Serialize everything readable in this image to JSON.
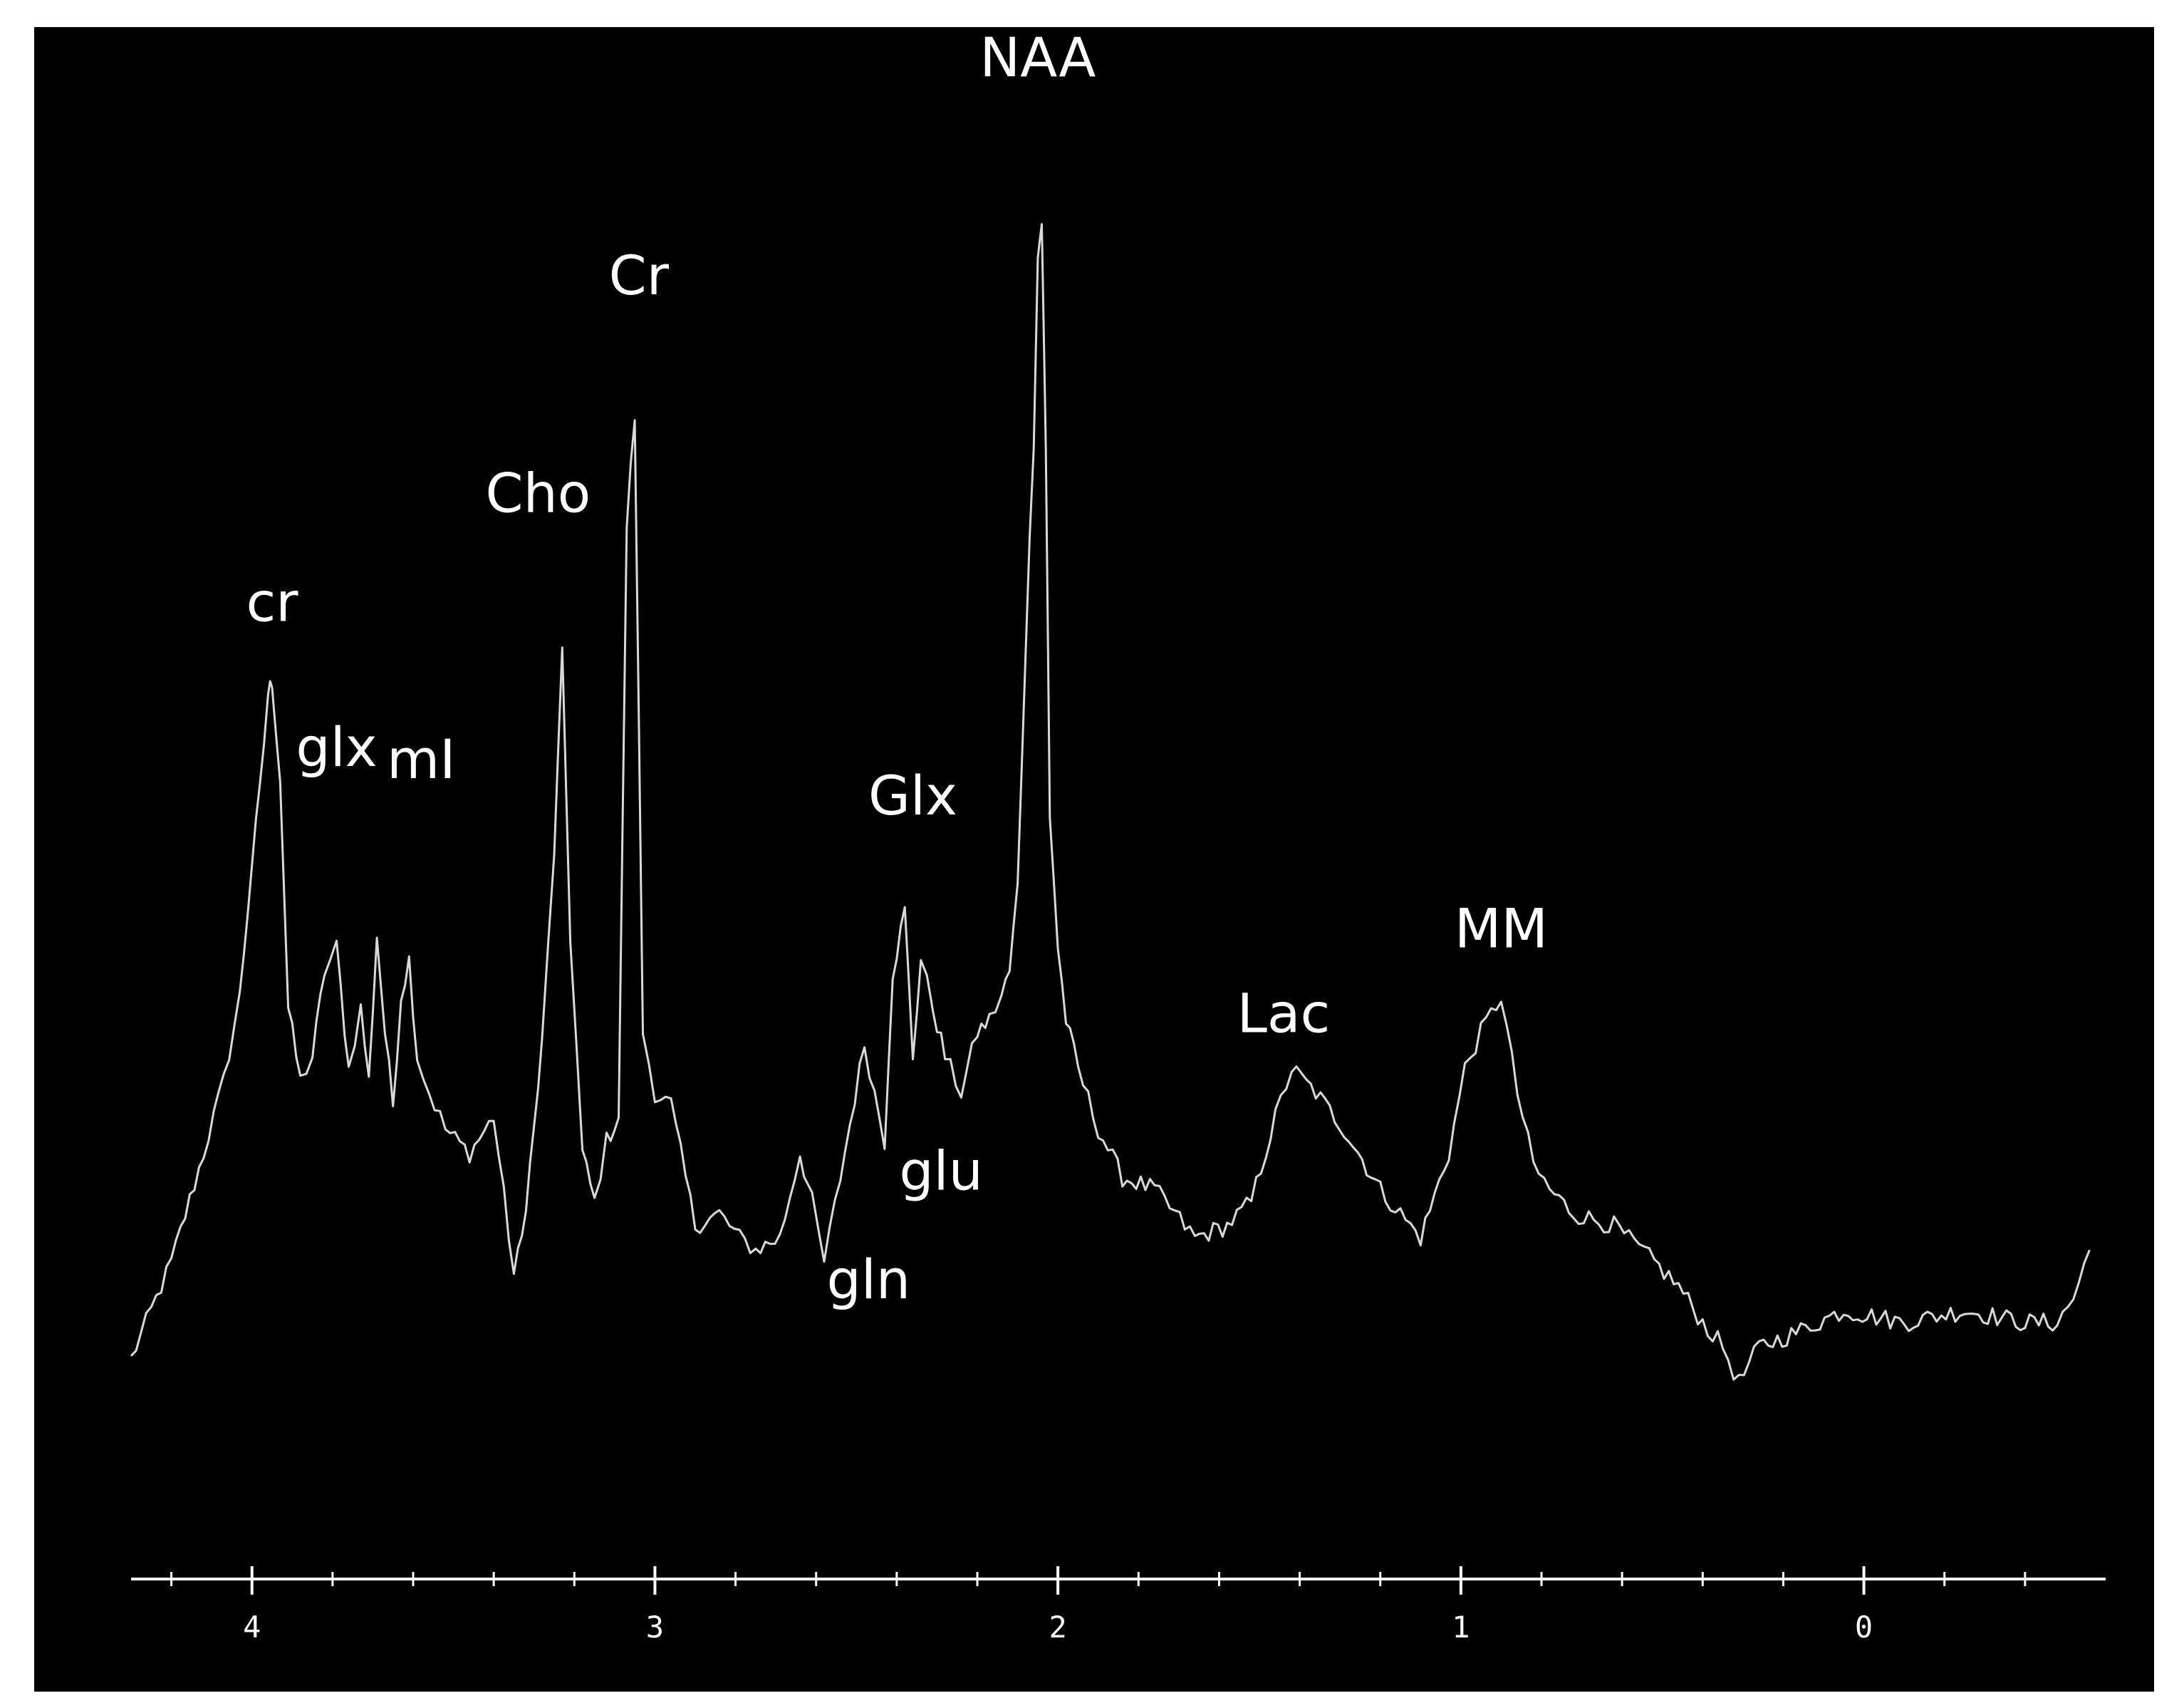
{
  "chart_data": {
    "type": "line",
    "title": "",
    "xlabel": "",
    "ylabel": "",
    "x_reversed": true,
    "xlim": [
      4.3,
      -0.6
    ],
    "ylim": [
      0,
      100
    ],
    "grid": false,
    "colors": {
      "background": "#000000",
      "line": "#d9d9d9",
      "text": "#ffffff"
    },
    "x_ticks": [
      {
        "value": 4,
        "label": "4"
      },
      {
        "value": 3,
        "label": "3"
      },
      {
        "value": 2,
        "label": "2"
      },
      {
        "value": 1,
        "label": "1"
      },
      {
        "value": 0,
        "label": "0"
      }
    ],
    "minor_tick_step": 0.2,
    "series": [
      {
        "x": [
          4.3,
          4.2,
          4.12,
          4.07,
          4.03,
          4.0,
          3.98,
          3.96,
          3.95,
          3.93,
          3.91,
          3.88,
          3.85,
          3.82,
          3.79,
          3.76,
          3.73,
          3.71,
          3.69,
          3.67,
          3.65,
          3.63,
          3.61,
          3.59,
          3.56,
          3.52,
          3.46,
          3.4,
          3.35,
          3.33,
          3.3,
          3.28,
          3.25,
          3.23,
          3.21,
          3.18,
          3.15,
          3.12,
          3.09,
          3.07,
          3.05,
          3.03,
          3.0,
          2.96,
          2.9,
          2.84,
          2.79,
          2.75,
          2.69,
          2.64,
          2.61,
          2.58,
          2.54,
          2.48,
          2.43,
          2.41,
          2.38,
          2.36,
          2.34,
          2.31,
          2.28,
          2.24,
          2.2,
          2.17,
          2.14,
          2.12,
          2.1,
          2.08,
          2.06,
          2.05,
          2.04,
          2.03,
          2.02,
          2.0,
          1.98,
          1.95,
          1.9,
          1.84,
          1.76,
          1.66,
          1.58,
          1.52,
          1.46,
          1.42,
          1.36,
          1.29,
          1.2,
          1.1,
          1.03,
          0.99,
          0.95,
          0.9,
          0.86,
          0.82,
          0.78,
          0.72,
          0.62,
          0.52,
          0.46,
          0.4,
          0.35,
          0.31,
          0.26,
          0.18,
          0.05,
          -0.1,
          -0.25,
          -0.4,
          -0.48,
          -0.52,
          -0.56
        ],
        "y": [
          3,
          11,
          20,
          26,
          33,
          44,
          50,
          58,
          59,
          51,
          32,
          26,
          28,
          35,
          37,
          27,
          32,
          26,
          38,
          30,
          24,
          33,
          36,
          28,
          25,
          22,
          20,
          23,
          10,
          13,
          22,
          29,
          45,
          61,
          38,
          20,
          16,
          21,
          23,
          72,
          81,
          30,
          25,
          24,
          14,
          15,
          13,
          12,
          13,
          20,
          16,
          11,
          18,
          29,
          21,
          35,
          40,
          28,
          36,
          32,
          28,
          25,
          30,
          31,
          33,
          35,
          42,
          62,
          79,
          94,
          97,
          78,
          48,
          37,
          31,
          27,
          22,
          18,
          17,
          13,
          14,
          16,
          23,
          27,
          25,
          22,
          17,
          13,
          20,
          27,
          30,
          33,
          25,
          19,
          17,
          15,
          14,
          11,
          9,
          6,
          4,
          1,
          4,
          5,
          7,
          6,
          7,
          6,
          6,
          8,
          12
        ]
      }
    ],
    "annotations": [
      {
        "text": "cr",
        "x": 3.95,
        "y": 64
      },
      {
        "text": "glx",
        "x": 3.79,
        "y": 52
      },
      {
        "text": "mI",
        "x": 3.58,
        "y": 51
      },
      {
        "text": "Cho",
        "x": 3.29,
        "y": 73
      },
      {
        "text": "Cr",
        "x": 3.04,
        "y": 91
      },
      {
        "text": "gln",
        "x": 2.47,
        "y": 8
      },
      {
        "text": "Glx",
        "x": 2.36,
        "y": 48
      },
      {
        "text": "glu",
        "x": 2.29,
        "y": 17
      },
      {
        "text": "NAA",
        "x": 2.05,
        "y": 109
      },
      {
        "text": "Lac",
        "x": 1.44,
        "y": 30
      },
      {
        "text": "MM",
        "x": 0.9,
        "y": 37
      }
    ]
  }
}
